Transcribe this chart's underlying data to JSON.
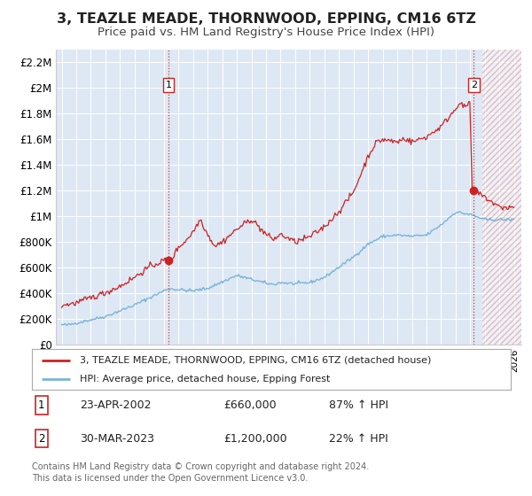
{
  "title": "3, TEAZLE MEADE, THORNWOOD, EPPING, CM16 6TZ",
  "subtitle": "Price paid vs. HM Land Registry's House Price Index (HPI)",
  "title_fontsize": 11.5,
  "subtitle_fontsize": 9.5,
  "hpi_color": "#7ab4d8",
  "price_color": "#cc2222",
  "plot_bg": "#dde8f4",
  "sale1_date_x": 2002.31,
  "sale1_price": 660000,
  "sale2_date_x": 2023.24,
  "sale2_price": 1200000,
  "ylim_min": 0,
  "ylim_max": 2300000,
  "xlim_min": 1994.6,
  "xlim_max": 2026.5,
  "legend_label_red": "3, TEAZLE MEADE, THORNWOOD, EPPING, CM16 6TZ (detached house)",
  "legend_label_blue": "HPI: Average price, detached house, Epping Forest",
  "annotation1_label": "23-APR-2002",
  "annotation1_price": "£660,000",
  "annotation1_hpi": "87% ↑ HPI",
  "annotation2_label": "30-MAR-2023",
  "annotation2_price": "£1,200,000",
  "annotation2_hpi": "22% ↑ HPI",
  "footer": "Contains HM Land Registry data © Crown copyright and database right 2024.\nThis data is licensed under the Open Government Licence v3.0.",
  "yticks": [
    0,
    200000,
    400000,
    600000,
    800000,
    1000000,
    1200000,
    1400000,
    1600000,
    1800000,
    2000000,
    2200000
  ],
  "ytick_labels": [
    "£0",
    "£200K",
    "£400K",
    "£600K",
    "£800K",
    "£1M",
    "£1.2M",
    "£1.4M",
    "£1.6M",
    "£1.8M",
    "£2M",
    "£2.2M"
  ]
}
